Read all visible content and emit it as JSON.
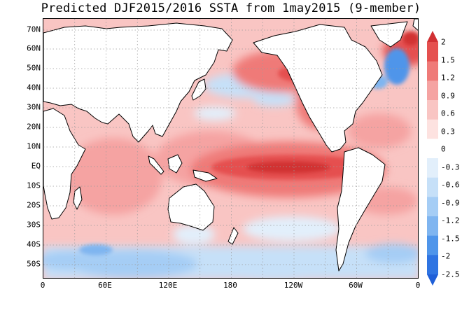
{
  "title": "Predicted DJF2015/2016 SSTA from 1may2015 (9-member)",
  "lat_labels": [
    "70N",
    "60N",
    "50N",
    "40N",
    "30N",
    "20N",
    "10N",
    "EQ",
    "10S",
    "20S",
    "30S",
    "40S",
    "50S"
  ],
  "lon_labels": [
    "0",
    "60E",
    "120E",
    "180",
    "120W",
    "60W",
    "0"
  ],
  "colorbar": {
    "labels": [
      "2",
      "1.5",
      "1.2",
      "0.9",
      "0.6",
      "0.3",
      "0",
      "-0.3",
      "-0.6",
      "-0.9",
      "-1.2",
      "-1.5",
      "-2",
      "-2.5"
    ],
    "colors": [
      "#d13033",
      "#e5504f",
      "#ef7a78",
      "#f5a3a2",
      "#f9c5c3",
      "#fde2e0",
      "#ffffff",
      "#e2effb",
      "#c6e0f8",
      "#a5cdf5",
      "#7fb5f0",
      "#4f95ea",
      "#2f74e2",
      "#1f5fd8"
    ]
  },
  "colors": {
    "land": "#ffffff",
    "coast": "#000000",
    "grid": "#9a9a9a"
  }
}
